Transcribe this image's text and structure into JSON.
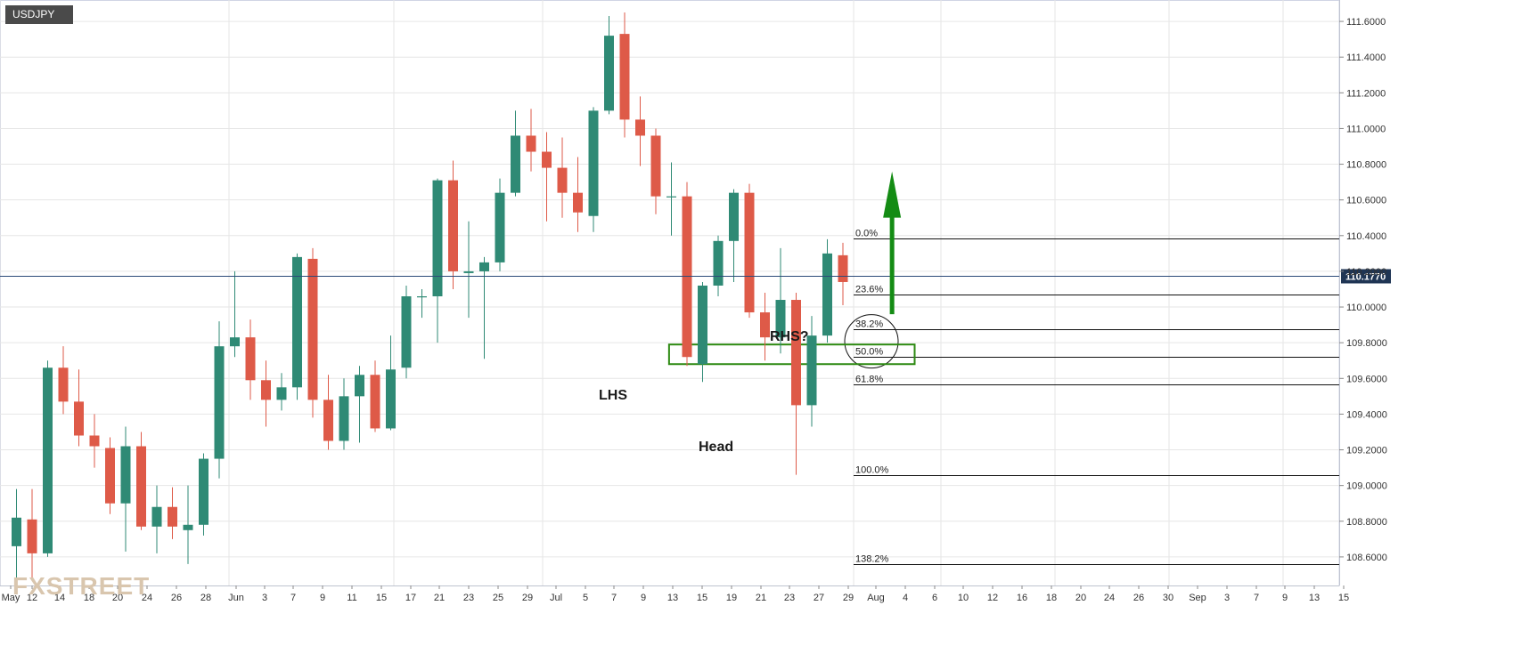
{
  "symbol": "USDJPY",
  "current_price_label": "110.1770",
  "watermark": "FXSTREET",
  "colors": {
    "up": "#2f8a75",
    "down": "#de5a48",
    "grid": "#e6e6e6",
    "price_line": "#2b4a78",
    "zone": "#2d8a12",
    "arrow": "#148c14"
  },
  "annotations": {
    "lhs": "LHS",
    "head": "Head",
    "rhs": "RHS?"
  },
  "chart_data": {
    "type": "candlestick",
    "title": "USDJPY",
    "ylim": [
      108.44,
      111.72
    ],
    "y_ticks": [
      "111.6000",
      "111.4000",
      "111.2000",
      "111.0000",
      "110.8000",
      "110.6000",
      "110.4000",
      "110.2000",
      "110.0000",
      "109.8000",
      "109.6000",
      "109.4000",
      "109.2000",
      "109.0000",
      "108.8000",
      "108.6000"
    ],
    "y_tick_values": [
      111.6,
      111.4,
      111.2,
      111.0,
      110.8,
      110.6,
      110.4,
      110.2,
      110.0,
      109.8,
      109.6,
      109.4,
      109.2,
      109.0,
      108.8,
      108.6
    ],
    "x_ticks": [
      "May",
      "12",
      "14",
      "18",
      "20",
      "24",
      "26",
      "28",
      "Jun",
      "3",
      "7",
      "9",
      "11",
      "15",
      "17",
      "21",
      "23",
      "25",
      "29",
      "Jul",
      "5",
      "7",
      "9",
      "13",
      "15",
      "19",
      "21",
      "23",
      "27",
      "29",
      "Aug",
      "4",
      "6",
      "10",
      "12",
      "16",
      "18",
      "20",
      "24",
      "26",
      "30",
      "Sep",
      "3",
      "7",
      "9",
      "13",
      "15"
    ],
    "candles": [
      {
        "o": 108.66,
        "h": 108.98,
        "l": 108.45,
        "c": 108.82
      },
      {
        "o": 108.81,
        "h": 108.98,
        "l": 108.48,
        "c": 108.62
      },
      {
        "o": 108.62,
        "h": 109.7,
        "l": 108.6,
        "c": 109.66
      },
      {
        "o": 109.66,
        "h": 109.78,
        "l": 109.4,
        "c": 109.47
      },
      {
        "o": 109.47,
        "h": 109.65,
        "l": 109.22,
        "c": 109.28
      },
      {
        "o": 109.28,
        "h": 109.4,
        "l": 109.1,
        "c": 109.22
      },
      {
        "o": 109.21,
        "h": 109.27,
        "l": 108.84,
        "c": 108.9
      },
      {
        "o": 108.9,
        "h": 109.33,
        "l": 108.63,
        "c": 109.22
      },
      {
        "o": 109.22,
        "h": 109.3,
        "l": 108.75,
        "c": 108.77
      },
      {
        "o": 108.77,
        "h": 109.0,
        "l": 108.62,
        "c": 108.88
      },
      {
        "o": 108.88,
        "h": 108.99,
        "l": 108.7,
        "c": 108.77
      },
      {
        "o": 108.75,
        "h": 109.0,
        "l": 108.56,
        "c": 108.78
      },
      {
        "o": 108.78,
        "h": 109.18,
        "l": 108.72,
        "c": 109.15
      },
      {
        "o": 109.15,
        "h": 109.92,
        "l": 109.04,
        "c": 109.78
      },
      {
        "o": 109.78,
        "h": 110.2,
        "l": 109.72,
        "c": 109.83
      },
      {
        "o": 109.83,
        "h": 109.93,
        "l": 109.48,
        "c": 109.59
      },
      {
        "o": 109.59,
        "h": 109.7,
        "l": 109.33,
        "c": 109.48
      },
      {
        "o": 109.48,
        "h": 109.63,
        "l": 109.42,
        "c": 109.55
      },
      {
        "o": 109.55,
        "h": 110.3,
        "l": 109.48,
        "c": 110.28
      },
      {
        "o": 110.27,
        "h": 110.33,
        "l": 109.38,
        "c": 109.48
      },
      {
        "o": 109.48,
        "h": 109.62,
        "l": 109.2,
        "c": 109.25
      },
      {
        "o": 109.25,
        "h": 109.6,
        "l": 109.2,
        "c": 109.5
      },
      {
        "o": 109.5,
        "h": 109.67,
        "l": 109.24,
        "c": 109.62
      },
      {
        "o": 109.62,
        "h": 109.7,
        "l": 109.3,
        "c": 109.32
      },
      {
        "o": 109.32,
        "h": 109.84,
        "l": 109.31,
        "c": 109.65
      },
      {
        "o": 109.66,
        "h": 110.12,
        "l": 109.6,
        "c": 110.06
      },
      {
        "o": 110.06,
        "h": 110.1,
        "l": 109.94,
        "c": 110.06
      },
      {
        "o": 110.06,
        "h": 110.72,
        "l": 109.8,
        "c": 110.71
      },
      {
        "o": 110.71,
        "h": 110.82,
        "l": 110.1,
        "c": 110.2
      },
      {
        "o": 110.19,
        "h": 110.48,
        "l": 109.94,
        "c": 110.2
      },
      {
        "o": 110.2,
        "h": 110.28,
        "l": 109.71,
        "c": 110.25
      },
      {
        "o": 110.25,
        "h": 110.72,
        "l": 110.2,
        "c": 110.64
      },
      {
        "o": 110.64,
        "h": 111.1,
        "l": 110.62,
        "c": 110.96
      },
      {
        "o": 110.96,
        "h": 111.11,
        "l": 110.76,
        "c": 110.87
      },
      {
        "o": 110.87,
        "h": 110.98,
        "l": 110.48,
        "c": 110.78
      },
      {
        "o": 110.78,
        "h": 110.95,
        "l": 110.5,
        "c": 110.64
      },
      {
        "o": 110.64,
        "h": 110.84,
        "l": 110.42,
        "c": 110.53
      },
      {
        "o": 110.51,
        "h": 111.12,
        "l": 110.42,
        "c": 111.1
      },
      {
        "o": 111.1,
        "h": 111.63,
        "l": 111.08,
        "c": 111.52
      },
      {
        "o": 111.53,
        "h": 111.65,
        "l": 110.95,
        "c": 111.05
      },
      {
        "o": 111.05,
        "h": 111.18,
        "l": 110.79,
        "c": 110.96
      },
      {
        "o": 110.96,
        "h": 111.0,
        "l": 110.52,
        "c": 110.62
      },
      {
        "o": 110.62,
        "h": 110.81,
        "l": 110.4,
        "c": 110.62
      },
      {
        "o": 110.62,
        "h": 110.7,
        "l": 109.67,
        "c": 109.72
      },
      {
        "o": 109.68,
        "h": 110.14,
        "l": 109.58,
        "c": 110.12
      },
      {
        "o": 110.12,
        "h": 110.4,
        "l": 110.06,
        "c": 110.37
      },
      {
        "o": 110.37,
        "h": 110.66,
        "l": 110.14,
        "c": 110.64
      },
      {
        "o": 110.64,
        "h": 110.69,
        "l": 109.94,
        "c": 109.97
      },
      {
        "o": 109.97,
        "h": 110.08,
        "l": 109.7,
        "c": 109.83
      },
      {
        "o": 109.83,
        "h": 110.33,
        "l": 109.74,
        "c": 110.04
      },
      {
        "o": 110.04,
        "h": 110.08,
        "l": 109.06,
        "c": 109.45
      },
      {
        "o": 109.45,
        "h": 109.95,
        "l": 109.33,
        "c": 109.84
      },
      {
        "o": 109.84,
        "h": 110.38,
        "l": 109.8,
        "c": 110.3
      },
      {
        "o": 110.29,
        "h": 110.36,
        "l": 110.01,
        "c": 110.14
      }
    ],
    "price_line": 110.177,
    "fibonacci": [
      {
        "label": "0.0%",
        "value": 110.383
      },
      {
        "label": "23.6%",
        "value": 110.07
      },
      {
        "label": "38.2%",
        "value": 109.875
      },
      {
        "label": "50.0%",
        "value": 109.72
      },
      {
        "label": "61.8%",
        "value": 109.565
      },
      {
        "label": "100.0%",
        "value": 109.06
      },
      {
        "label": "138.2%",
        "value": 108.56
      }
    ],
    "zone": {
      "y_high": 109.79,
      "y_low": 109.68,
      "x_start_bar": 41.85,
      "x_end_bar": 57.6
    },
    "arrow": {
      "x_bar": 56.15,
      "y_from": 109.96,
      "y_to": 110.76
    }
  }
}
